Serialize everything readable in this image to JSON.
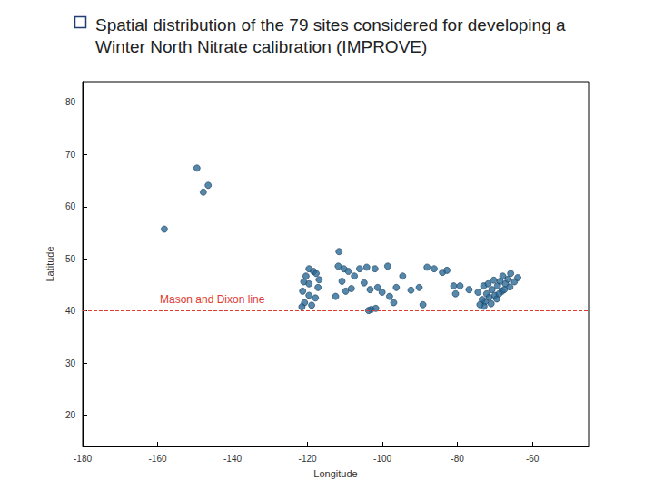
{
  "chart_data": {
    "type": "scatter",
    "title": "Spatial distribution of the 79 sites considered for developing a Winter North Nitrate calibration (IMPROVE)",
    "x_label": "Longitude",
    "y_label": "Latitude",
    "x": [
      -149.5,
      -146.5,
      -147.8,
      -158.2,
      -119.6,
      -118.4,
      -120.4,
      -117.7,
      -121.3,
      -119.6,
      -120.8,
      -118.9,
      -117.2,
      -117.9,
      -121.0,
      -119.6,
      -121.5,
      -116.9,
      -111.6,
      -111.8,
      -110.3,
      -109.1,
      -107.5,
      -110.8,
      -112.5,
      -109.8,
      -108.3,
      -106.1,
      -104.2,
      -102.0,
      -98.6,
      -104.9,
      -103.3,
      -101.3,
      -100.1,
      -98.1,
      -97.0,
      -103.0,
      -101.8,
      -103.7,
      -96.3,
      -94.6,
      -92.4,
      -90.2,
      -89.2,
      -88.1,
      -86.2,
      -84.0,
      -82.8,
      -81.0,
      -79.3,
      -76.9,
      -80.5,
      -74.5,
      -73.0,
      -72.2,
      -71.5,
      -70.8,
      -70.0,
      -69.3,
      -68.6,
      -67.9,
      -67.2,
      -66.5,
      -65.8,
      -68.1,
      -69.5,
      -71.0,
      -72.6,
      -73.4,
      -70.3,
      -66.0,
      -64.8,
      -71.8,
      -67.5,
      -68.9,
      -72.9,
      -74.0,
      -63.9
    ],
    "values": [
      67.4,
      64.1,
      62.8,
      55.7,
      48.1,
      47.6,
      46.7,
      47.2,
      43.8,
      43.0,
      41.6,
      41.1,
      44.5,
      42.5,
      45.6,
      45.2,
      40.8,
      46.0,
      51.4,
      48.6,
      48.1,
      47.6,
      46.7,
      45.7,
      42.8,
      43.8,
      44.3,
      48.1,
      48.4,
      48.1,
      48.6,
      45.4,
      44.1,
      44.5,
      43.6,
      42.8,
      41.6,
      40.3,
      40.5,
      40.1,
      44.5,
      46.7,
      44.0,
      44.5,
      41.2,
      48.4,
      48.1,
      47.4,
      47.8,
      44.8,
      44.8,
      44.1,
      43.3,
      43.6,
      44.8,
      43.3,
      42.6,
      44.1,
      43.0,
      44.8,
      45.7,
      46.7,
      45.2,
      46.1,
      47.2,
      43.8,
      42.3,
      41.4,
      41.8,
      42.2,
      45.9,
      44.6,
      45.6,
      45.2,
      44.1,
      43.3,
      40.9,
      41.2,
      46.4
    ],
    "color": "#2a6a96",
    "marker": "circle",
    "xlim": [
      -180,
      -45
    ],
    "xticks": [
      -180,
      -160,
      -140,
      -120,
      -100,
      -80,
      -60
    ],
    "ylim": [
      14,
      84
    ],
    "yticks": [
      20,
      30,
      40,
      50,
      60,
      70,
      80
    ],
    "grid": false,
    "hlines": [
      {
        "y": 40,
        "label": "Mason and Dixon line",
        "color": "#e03c31",
        "line_style": "dashed"
      }
    ]
  }
}
